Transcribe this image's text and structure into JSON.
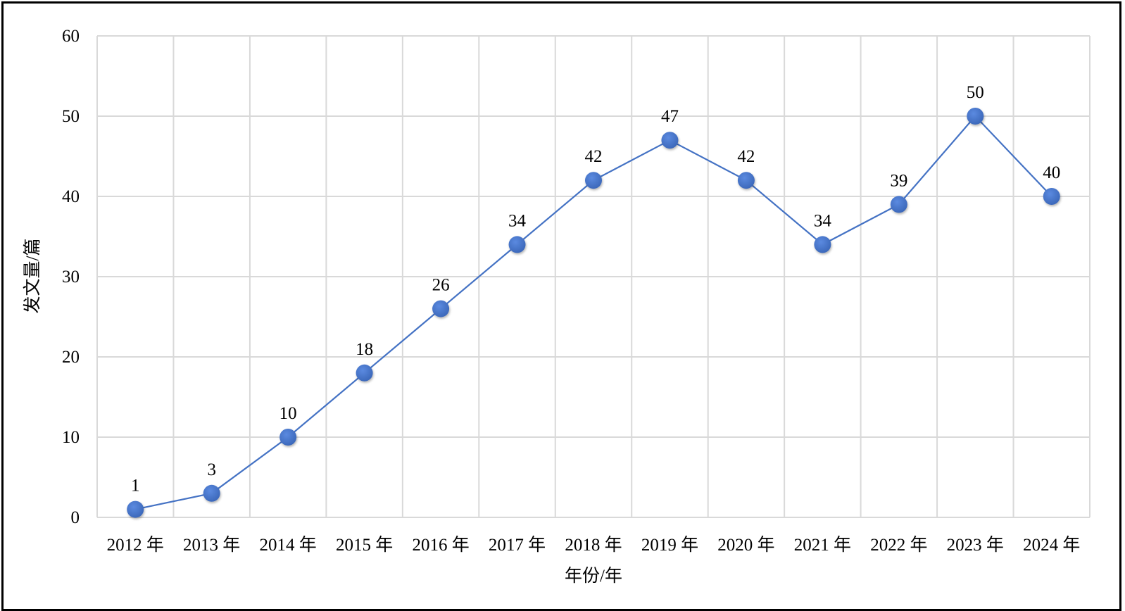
{
  "chart_data": {
    "type": "line",
    "title": "",
    "xlabel": "年份/年",
    "ylabel": "发文量/篇",
    "categories": [
      "2012 年",
      "2013 年",
      "2014 年",
      "2015 年",
      "2016 年",
      "2017 年",
      "2018 年",
      "2019 年",
      "2020 年",
      "2021 年",
      "2022 年",
      "2023 年",
      "2024 年"
    ],
    "values": [
      1,
      3,
      10,
      18,
      26,
      34,
      42,
      47,
      42,
      34,
      39,
      50,
      40
    ],
    "ylim": [
      0,
      60
    ],
    "yticks": [
      0,
      10,
      20,
      30,
      40,
      50,
      60
    ],
    "grid": true,
    "data_labels": true,
    "legend": "none",
    "colors": {
      "series": "#4472C4",
      "grid": "#D9D9D9",
      "border": "#000000"
    }
  }
}
